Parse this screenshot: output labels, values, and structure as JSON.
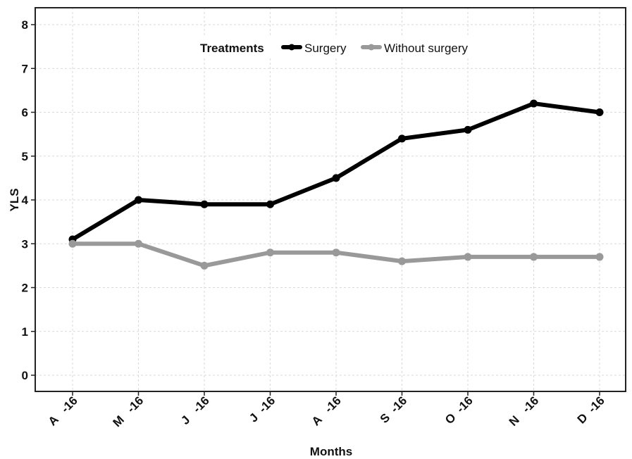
{
  "chart_data": {
    "type": "line",
    "title": "",
    "xlabel": "Months",
    "ylabel": "YLS",
    "categories": [
      "A   -16",
      "M   -16",
      "J   -16",
      "J  -16",
      "A   -16",
      "S  -16",
      "O  -16",
      "N   -16",
      "D  -16"
    ],
    "ylim": [
      0,
      8
    ],
    "yticks": [
      "0",
      "1",
      "2",
      "3",
      "4",
      "5",
      "6",
      "7",
      "8"
    ],
    "grid": true,
    "legend_title": "Treatments",
    "legend_position": "top",
    "series": [
      {
        "name": "Surgery",
        "color": "#000000",
        "values": [
          3.1,
          4.0,
          3.9,
          3.9,
          4.5,
          5.4,
          5.6,
          6.2,
          6.0
        ]
      },
      {
        "name": "Without surgery",
        "color": "#999999",
        "values": [
          3.0,
          3.0,
          2.5,
          2.8,
          2.8,
          2.6,
          2.7,
          2.7,
          2.7
        ]
      }
    ]
  }
}
